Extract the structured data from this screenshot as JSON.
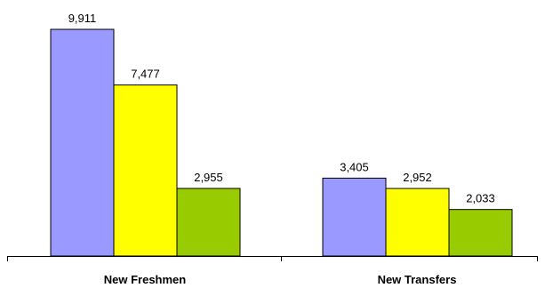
{
  "chart_data": {
    "type": "bar",
    "categories": [
      "New Freshmen",
      "New Transfers"
    ],
    "series": [
      {
        "values": [
          9911,
          3405
        ],
        "labels": [
          "9,911",
          "3,405"
        ],
        "color": "#9999ff"
      },
      {
        "values": [
          7477,
          2952
        ],
        "labels": [
          "7,477",
          "2,952"
        ],
        "color": "#ffff00"
      },
      {
        "values": [
          2955,
          2033
        ],
        "labels": [
          "2,955",
          "2,033"
        ],
        "color": "#99cc00"
      }
    ],
    "title": "",
    "xlabel": "",
    "ylabel": "",
    "ylim": [
      0,
      9911
    ],
    "grid": false,
    "legend": "none"
  }
}
